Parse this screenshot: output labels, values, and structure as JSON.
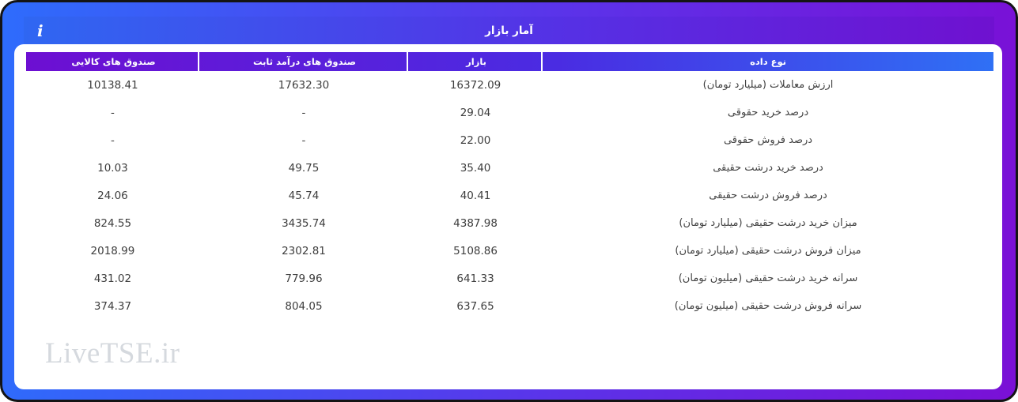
{
  "header": {
    "title": "آمار بازار",
    "info_icon_glyph": "i"
  },
  "table": {
    "columns": {
      "commodity": "صندوق های کالایی",
      "fixed": "صندوق های درآمد ثابت",
      "market": "بازار",
      "type": "نوع داده"
    },
    "rows": [
      {
        "label": "ارزش معاملات (میلیارد تومان)",
        "market": "16372.09",
        "fixed": "17632.30",
        "commodity": "10138.41"
      },
      {
        "label": "درصد خرید حقوقی",
        "market": "29.04",
        "fixed": "-",
        "commodity": "-"
      },
      {
        "label": "درصد فروش حقوقی",
        "market": "22.00",
        "fixed": "-",
        "commodity": "-"
      },
      {
        "label": "درصد خرید درشت حقیقی",
        "market": "35.40",
        "fixed": "49.75",
        "commodity": "10.03"
      },
      {
        "label": "درصد فروش درشت حقیقی",
        "market": "40.41",
        "fixed": "45.74",
        "commodity": "24.06"
      },
      {
        "label": "میزان خرید درشت حقیقی (میلیارد تومان)",
        "market": "4387.98",
        "fixed": "3435.74",
        "commodity": "824.55"
      },
      {
        "label": "میزان فروش درشت حقیقی (میلیارد تومان)",
        "market": "5108.86",
        "fixed": "2302.81",
        "commodity": "2018.99"
      },
      {
        "label": "سرانه خرید درشت حقیقی (میلیون تومان)",
        "market": "641.33",
        "fixed": "779.96",
        "commodity": "431.02"
      },
      {
        "label": "سرانه فروش درشت حقیقی (میلیون تومان)",
        "market": "637.65",
        "fixed": "804.05",
        "commodity": "374.37"
      }
    ]
  },
  "watermark": "LiveTSE.ir",
  "colors": {
    "frame_gradient_start": "#2e6cfc",
    "frame_gradient_end": "#7a10d6",
    "table_header_gradient_start": "#6d0fd2",
    "table_header_gradient_end": "#2f70f5",
    "border": "#141414",
    "body_text": "#3d3d3d",
    "watermark_text": "#d5d9de"
  }
}
